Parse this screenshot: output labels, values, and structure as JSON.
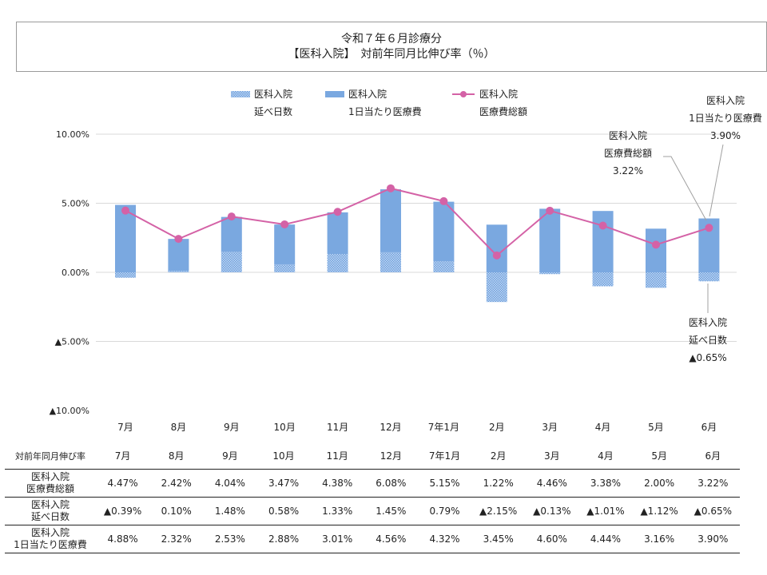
{
  "title": {
    "line1": "令和７年６月診療分",
    "line2": "【医科入院】　対前年同月比伸び率（％）"
  },
  "legend": [
    {
      "key": "days",
      "line1": "医科入院",
      "line2": "延べ日数"
    },
    {
      "key": "perday",
      "line1": "医科入院",
      "line2": "1日当たり医療費"
    },
    {
      "key": "total",
      "line1": "医科入院",
      "line2": "医療費総額"
    }
  ],
  "colors": {
    "bar": "#7aa8e0",
    "bar_pattern": "#a9c8ee",
    "line": "#d462a6",
    "grid": "#d9d9d9"
  },
  "chart_data": {
    "type": "bar",
    "stacked": true,
    "categories": [
      "7月",
      "8月",
      "9月",
      "10月",
      "11月",
      "12月",
      "7年1月",
      "2月",
      "3月",
      "4月",
      "5月",
      "6月"
    ],
    "y_ticks": [
      "10.00%",
      "5.00%",
      "0.00%",
      "▲5.00%",
      "▲10.00%"
    ],
    "ylim": [
      -10,
      10
    ],
    "grid": true,
    "legend_position": "top",
    "series": [
      {
        "name": "医科入院 延べ日数",
        "kind": "bar-pattern",
        "values": [
          -0.39,
          0.1,
          1.48,
          0.58,
          1.33,
          1.45,
          0.79,
          -2.15,
          -0.13,
          -1.01,
          -1.12,
          -0.65
        ]
      },
      {
        "name": "医科入院 1日当たり医療費",
        "kind": "bar",
        "values": [
          4.88,
          2.32,
          2.53,
          2.88,
          3.01,
          4.56,
          4.32,
          3.45,
          4.6,
          4.44,
          3.16,
          3.9
        ]
      },
      {
        "name": "医科入院 医療費総額",
        "kind": "line",
        "values": [
          4.47,
          2.42,
          4.04,
          3.47,
          4.38,
          6.08,
          5.15,
          1.22,
          4.46,
          3.38,
          2.0,
          3.22
        ]
      }
    ]
  },
  "callouts": [
    {
      "key": "perday",
      "line1": "医科入院",
      "line2": "1日当たり医療費",
      "line3": "3.90%"
    },
    {
      "key": "total",
      "line1": "医科入院",
      "line2": "医療費総額",
      "line3": "3.22%"
    },
    {
      "key": "days",
      "line1": "医科入院",
      "line2": "延べ日数",
      "line3": "▲0.65%"
    }
  ],
  "table": {
    "header_label": "対前年同月伸び率",
    "months": [
      "7月",
      "8月",
      "9月",
      "10月",
      "11月",
      "12月",
      "7年1月",
      "2月",
      "3月",
      "4月",
      "5月",
      "6月"
    ],
    "rows": [
      {
        "label1": "医科入院",
        "label2": "医療費総額",
        "cells": [
          "4.47%",
          "2.42%",
          "4.04%",
          "3.47%",
          "4.38%",
          "6.08%",
          "5.15%",
          "1.22%",
          "4.46%",
          "3.38%",
          "2.00%",
          "3.22%"
        ]
      },
      {
        "label1": "医科入院",
        "label2": "延べ日数",
        "cells": [
          "▲0.39%",
          "0.10%",
          "1.48%",
          "0.58%",
          "1.33%",
          "1.45%",
          "0.79%",
          "▲2.15%",
          "▲0.13%",
          "▲1.01%",
          "▲1.12%",
          "▲0.65%"
        ]
      },
      {
        "label1": "医科入院",
        "label2": "1日当たり医療費",
        "cells": [
          "4.88%",
          "2.32%",
          "2.53%",
          "2.88%",
          "3.01%",
          "4.56%",
          "4.32%",
          "3.45%",
          "4.60%",
          "4.44%",
          "3.16%",
          "3.90%"
        ]
      }
    ]
  }
}
